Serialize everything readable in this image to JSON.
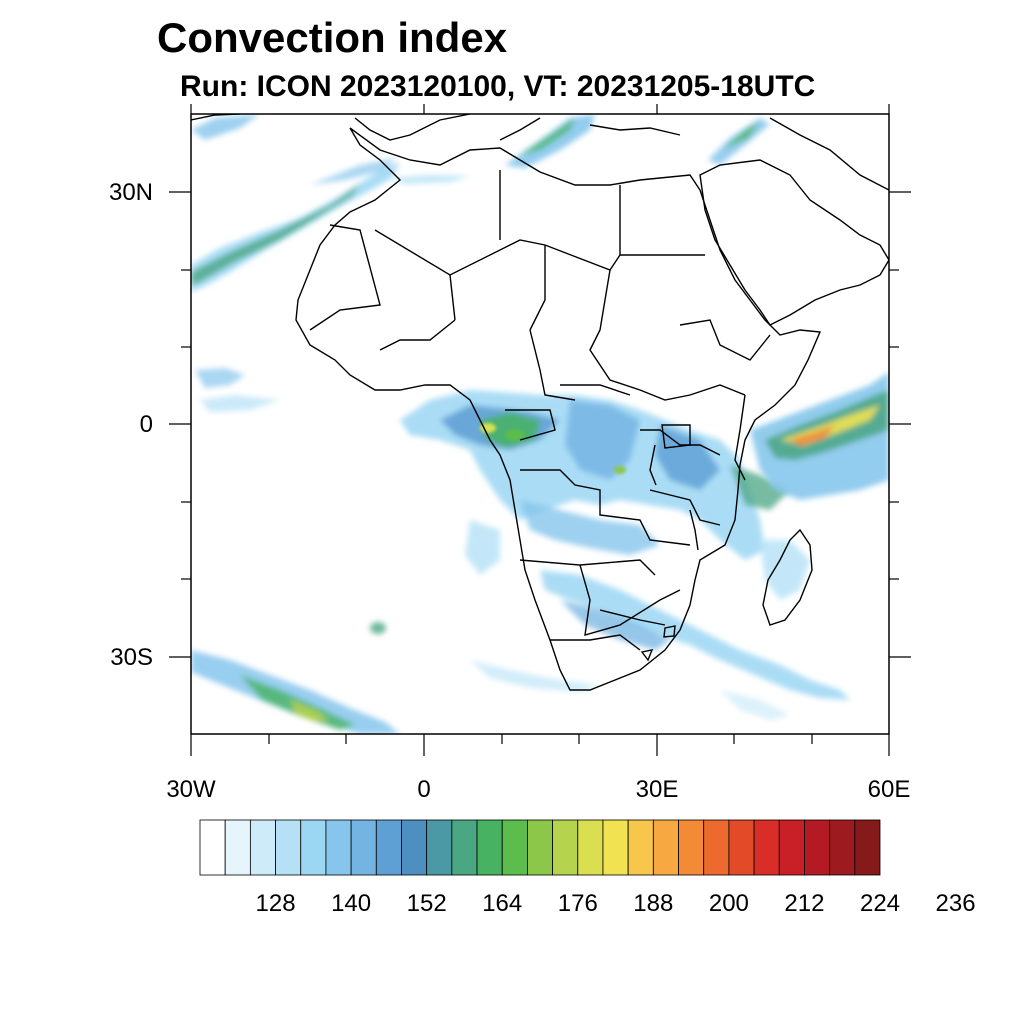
{
  "title": "Convection index",
  "subtitle": "Run: ICON 2023120100,  VT: 20231205-18UTC",
  "chart_data": {
    "type": "map",
    "title": "Convection index",
    "subtitle": "Run: ICON 2023120100,  VT: 20231205-18UTC",
    "lon_range": [
      -30,
      60
    ],
    "lat_range": [
      -40,
      40
    ],
    "lon_ticks": [
      {
        "value": -30,
        "label": "30W"
      },
      {
        "value": 0,
        "label": "0"
      },
      {
        "value": 30,
        "label": "30E"
      },
      {
        "value": 60,
        "label": "60E"
      }
    ],
    "lat_ticks": [
      {
        "value": 30,
        "label": "30N"
      },
      {
        "value": 0,
        "label": "0"
      },
      {
        "value": -30,
        "label": "30S"
      }
    ],
    "colorbar": {
      "colors": [
        "#ffffff",
        "#e6f5fc",
        "#cdebf8",
        "#b4e1f6",
        "#9bd6f3",
        "#86c6ec",
        "#73b4e2",
        "#5e9fd4",
        "#4e8fc2",
        "#4c99a6",
        "#4aa683",
        "#47b362",
        "#5cbc4c",
        "#8cc74a",
        "#b5d34c",
        "#d9df4f",
        "#f0e251",
        "#f7c64b",
        "#f7a840",
        "#f38a36",
        "#ec6a2e",
        "#e34a28",
        "#d92d27",
        "#c91f27",
        "#b31a24",
        "#9d1a1f",
        "#861a1b"
      ],
      "labels": [
        "128",
        "140",
        "152",
        "164",
        "176",
        "188",
        "200",
        "212",
        "224",
        "236"
      ]
    }
  }
}
